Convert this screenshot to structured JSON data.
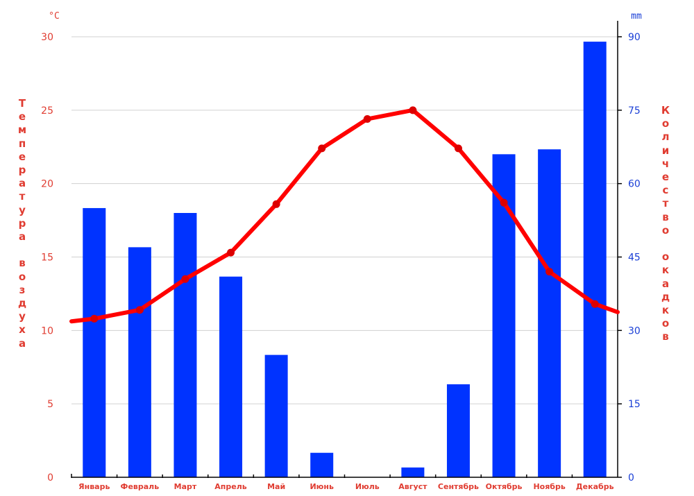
{
  "chart_data": {
    "type": "bar",
    "categories": [
      "Январь",
      "Февраль",
      "Март",
      "Апрель",
      "Май",
      "Июнь",
      "Июль",
      "Август",
      "Сентябрь",
      "Октябрь",
      "Ноябрь",
      "Декабрь"
    ],
    "series": [
      {
        "values": [
          55,
          47,
          54,
          41,
          25,
          5,
          0,
          2,
          19,
          66,
          67,
          89
        ],
        "axis": "right",
        "color": "#0033ff",
        "type": "bar"
      },
      {
        "values": [
          10.8,
          11.4,
          13.5,
          15.3,
          18.6,
          22.4,
          24.4,
          25.0,
          22.4,
          18.7,
          14.0,
          11.8
        ],
        "axis": "left",
        "color": "#ff0000",
        "type": "line"
      }
    ],
    "ylabel": "Температура воздуха",
    "y2label": "Количество окадков",
    "yunit": "°C",
    "y2unit": "mm",
    "ylim": [
      0,
      30
    ],
    "y2lim": [
      0,
      90
    ],
    "yticks": [
      0,
      5,
      10,
      15,
      20,
      25,
      30
    ],
    "y2ticks": [
      0,
      15,
      30,
      45,
      60,
      75,
      90
    ],
    "grid": true,
    "legend": "none"
  }
}
